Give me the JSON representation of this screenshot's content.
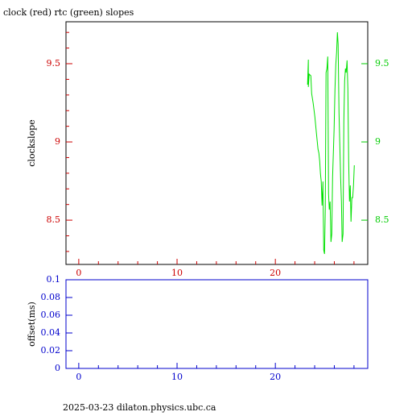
{
  "chart_data": [
    {
      "type": "line",
      "title": "clock (red) rtc (green) slopes",
      "ylabel": "clockslope",
      "xlim": [
        -1.3,
        29.4
      ],
      "xticks": [
        0,
        10,
        20
      ],
      "xminorticks": [
        2,
        4,
        6,
        8,
        12,
        14,
        16,
        18,
        22,
        24,
        26,
        28
      ],
      "ylim": [
        8.217,
        9.768
      ],
      "yticks": [
        8.5,
        9,
        9.5
      ],
      "yminorticks": [
        8.3,
        8.4,
        8.6,
        8.7,
        8.8,
        8.9,
        9.1,
        9.2,
        9.3,
        9.4,
        9.6,
        9.7
      ],
      "y2lim": [
        8.217,
        9.768
      ],
      "y2ticks": [
        8.5,
        9,
        9.5
      ],
      "axis_color": "#cc0000",
      "y2_color": "#00cc00",
      "series": [
        {
          "color": "#00e000",
          "axis": "y2",
          "x": [
            23.28,
            23.36,
            23.36,
            23.44,
            23.61,
            23.69,
            23.85,
            24.02,
            24.18,
            24.34,
            24.43,
            24.51,
            24.59,
            24.67,
            24.75,
            24.84,
            24.92,
            25.0,
            25.08,
            25.16,
            25.25,
            25.33,
            25.41,
            25.49,
            25.57,
            25.66,
            25.74,
            25.82,
            25.98,
            26.07,
            26.15,
            26.23,
            26.31,
            26.39,
            26.48,
            26.64,
            26.72,
            26.8,
            26.89,
            26.97,
            27.05,
            27.13,
            27.21,
            27.3,
            27.38,
            27.46,
            27.54,
            27.62,
            27.7,
            27.79,
            27.87,
            27.95,
            28.03
          ],
          "values": [
            9.366,
            9.526,
            9.351,
            9.433,
            9.423,
            9.309,
            9.247,
            9.16,
            9.057,
            8.954,
            8.928,
            8.876,
            8.799,
            8.747,
            8.593,
            8.747,
            8.309,
            8.284,
            8.567,
            9.443,
            9.469,
            9.546,
            8.67,
            8.567,
            8.619,
            8.361,
            8.412,
            8.773,
            9.082,
            9.34,
            9.495,
            9.572,
            9.701,
            9.624,
            9.186,
            8.773,
            8.619,
            8.361,
            8.412,
            9.134,
            9.392,
            9.469,
            9.443,
            9.521,
            9.34,
            8.876,
            8.619,
            8.722,
            8.49,
            8.644,
            8.644,
            8.722,
            8.851
          ]
        }
      ]
    },
    {
      "type": "line",
      "ylabel": "offset(ms)",
      "xlim": [
        -1.3,
        29.4
      ],
      "xticks": [
        0,
        10,
        20
      ],
      "xminorticks": [
        2,
        4,
        6,
        8,
        12,
        14,
        16,
        18,
        22,
        24,
        26,
        28
      ],
      "ylim": [
        0,
        0.1
      ],
      "yticks": [
        0,
        0.02,
        0.04,
        0.06,
        0.08,
        0.1
      ],
      "axis_color": "#0000cc",
      "series": []
    }
  ],
  "footer": "2025-03-23 dilaton.physics.ubc.ca"
}
